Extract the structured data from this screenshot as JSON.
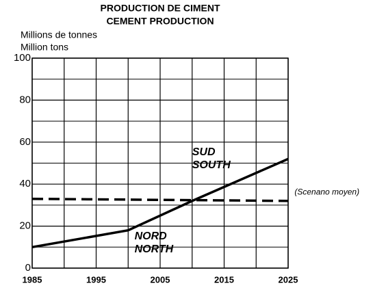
{
  "chart_data": {
    "type": "line",
    "title": "PRODUCTION DE CIMENT",
    "subtitle": "CEMENT PRODUCTION",
    "y_label": [
      "Millions de tonnes",
      "Million tons"
    ],
    "series": [
      {
        "color": "#000000",
        "style": "solid",
        "x": [
          1985,
          2000,
          2010,
          2025
        ],
        "values": [
          10,
          18,
          32,
          52
        ]
      },
      {
        "color": "#000000",
        "style": "dashed",
        "x": [
          1985,
          2025
        ],
        "values": [
          33,
          32
        ]
      }
    ],
    "annotations": [
      {
        "text": [
          "SUD",
          "SOUTH"
        ],
        "x": 2010,
        "y": 52
      },
      {
        "text": [
          "NORD",
          "NORTH"
        ],
        "x": 2001,
        "y": 12
      },
      {
        "text": [
          "(Scenano moyen)"
        ],
        "x": 2026,
        "y": 36
      }
    ],
    "xlim": [
      1985,
      2025
    ],
    "xticks": [
      1985,
      1995,
      2005,
      2015,
      2025
    ],
    "x_minor_ticks": [
      1990,
      2000,
      2010,
      2020
    ],
    "ylim": [
      0,
      100
    ],
    "yticks": [
      0,
      20,
      40,
      60,
      80,
      100
    ],
    "y_minor_ticks": [
      10,
      30,
      50,
      70,
      90
    ],
    "grid": true
  }
}
